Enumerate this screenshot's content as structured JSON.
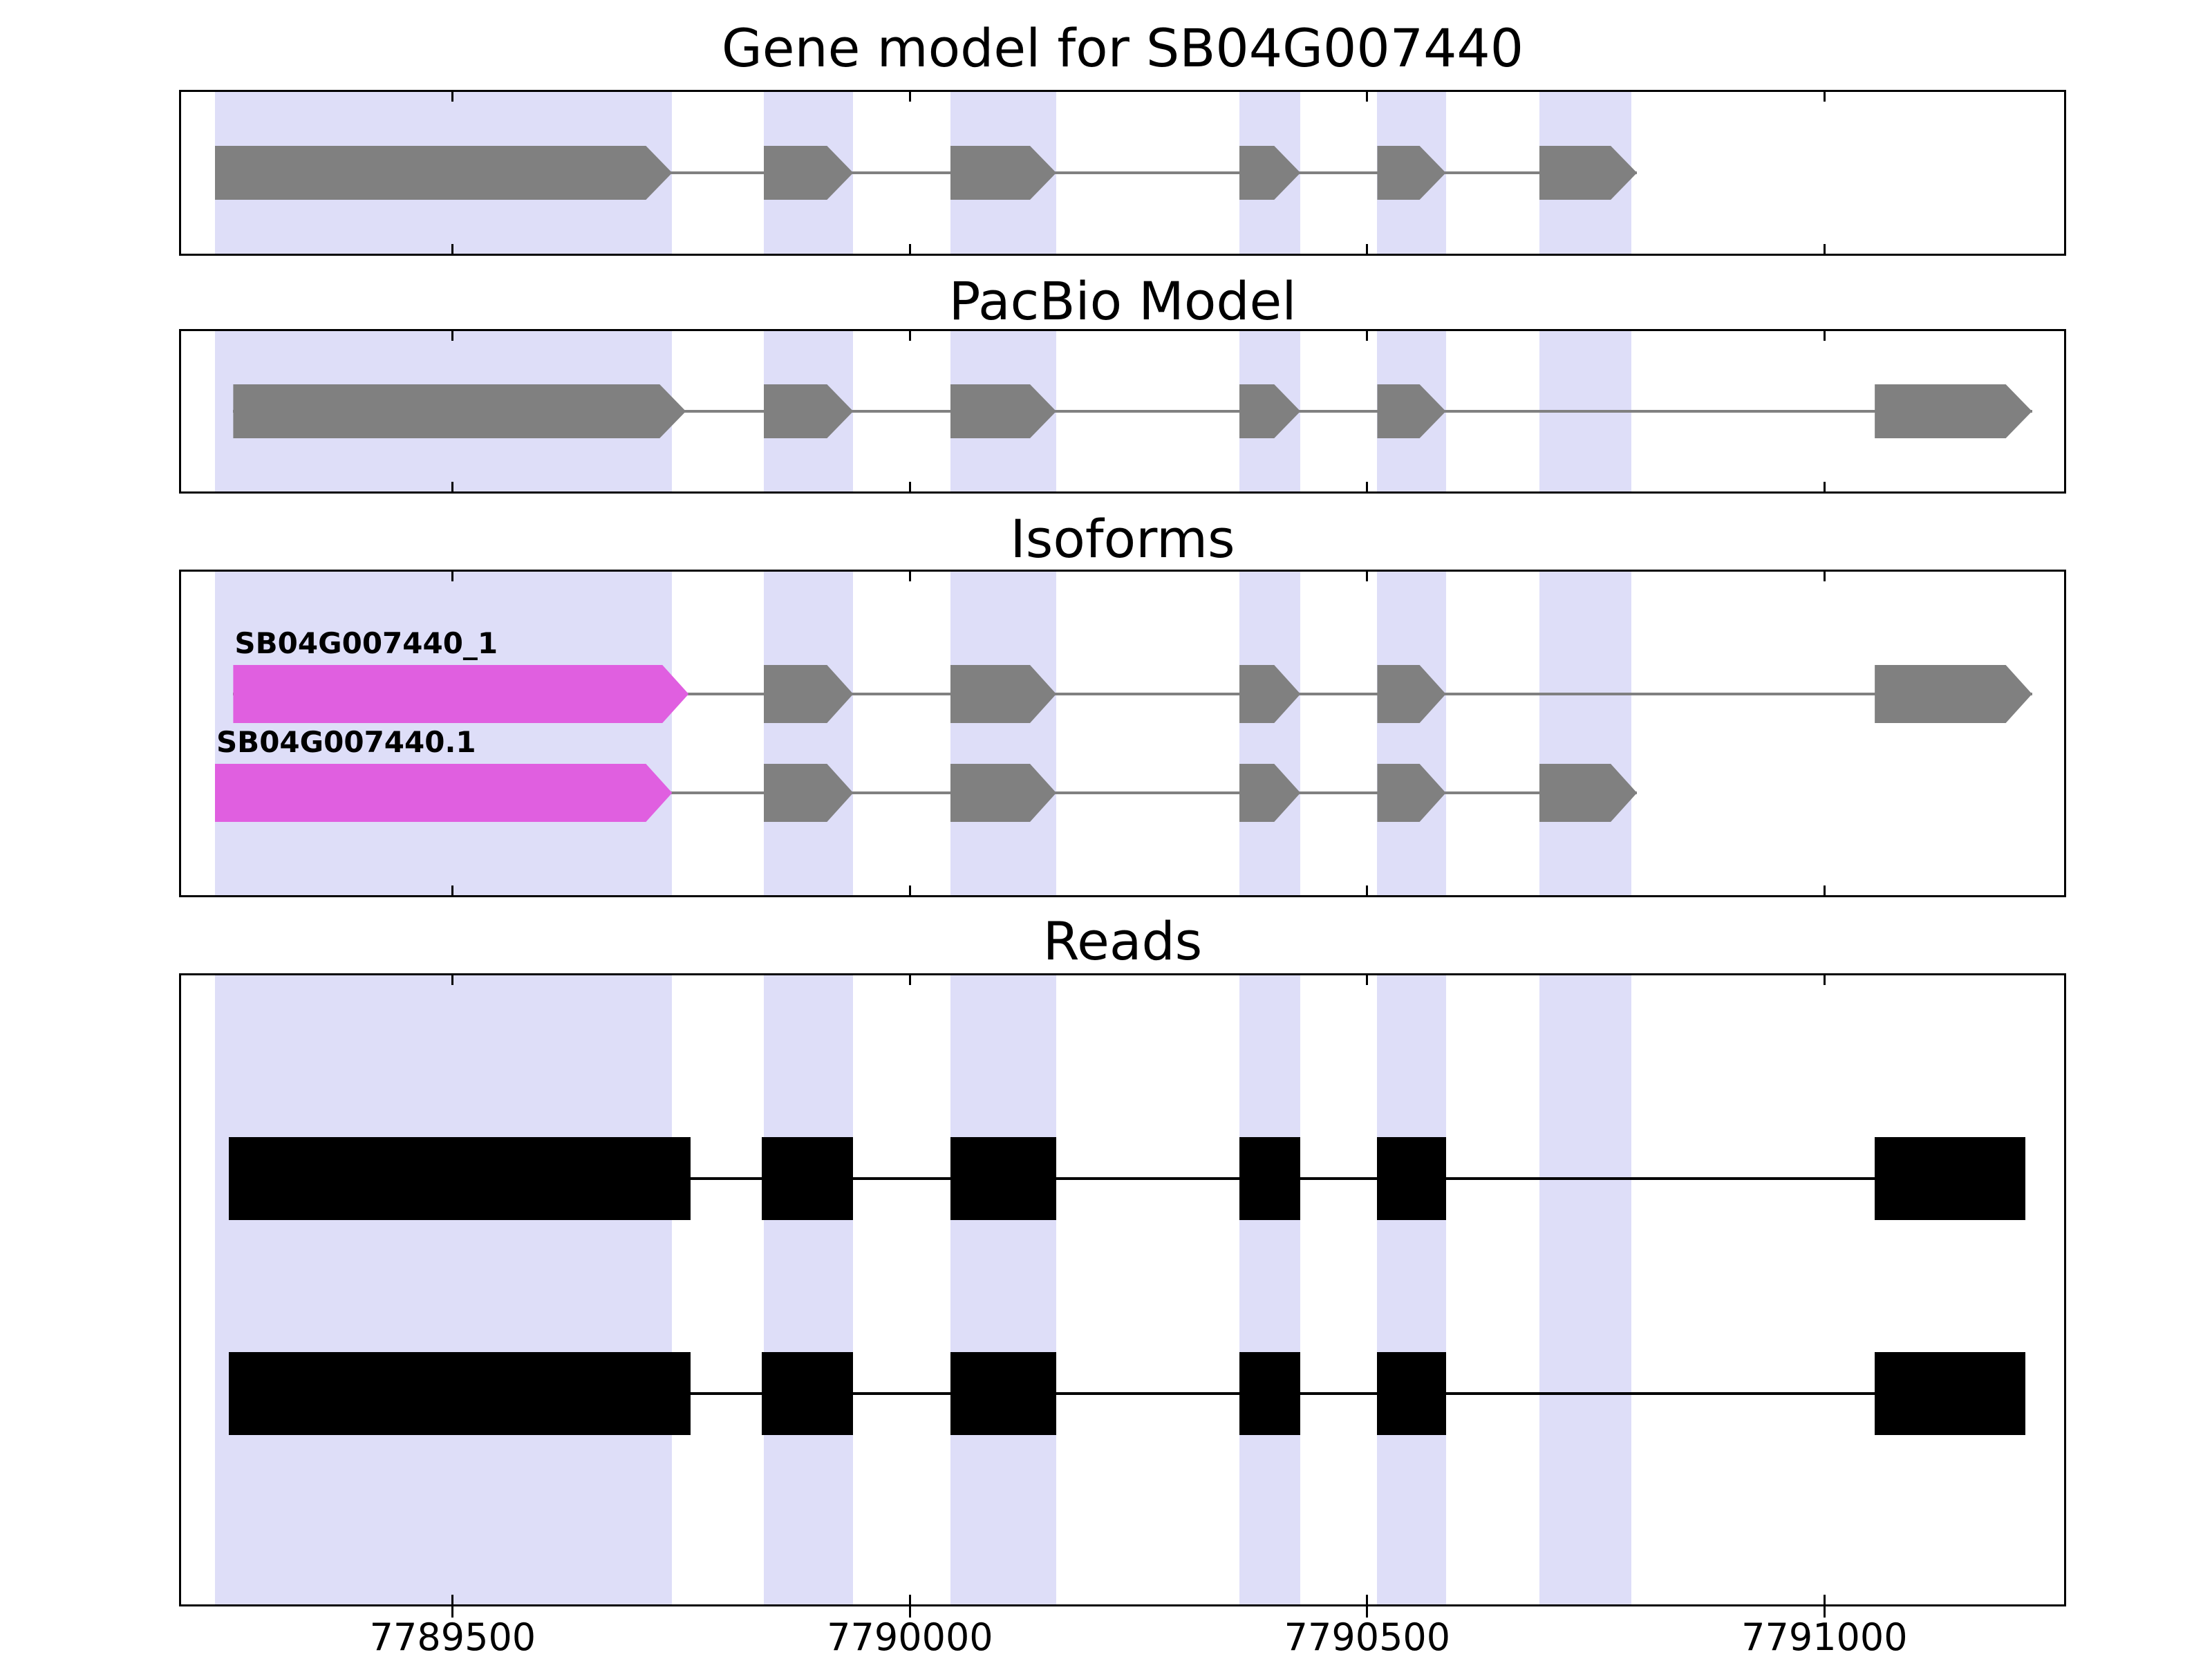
{
  "figure": {
    "background": "#ffffff"
  },
  "chart_data": {
    "type": "gene-model-tracks",
    "xlim": [
      7789203,
      7791262
    ],
    "xtick_values": [
      7789500,
      7790000,
      7790500,
      7791000
    ],
    "xticks": [
      "7789500",
      "7790000",
      "7790500",
      "7791000"
    ],
    "grid": false,
    "highlight_color": "#dedef8",
    "highlight_regions": [
      [
        7789240,
        7789740
      ],
      [
        7789840,
        7789938
      ],
      [
        7790044,
        7790160
      ],
      [
        7790360,
        7790427
      ],
      [
        7790511,
        7790586
      ],
      [
        7790688,
        7790789
      ]
    ],
    "colors": {
      "exon_gray": "#808080",
      "isoform_first_exon": "#e05fe0",
      "read_black": "#000000",
      "highlight_band": "#dedef8"
    },
    "panels": [
      {
        "title": "Gene model for SB04G007440",
        "tracks": [
          {
            "style": "arrow",
            "exon_color": "#808080",
            "first_exon_color": null,
            "line_color": "#808080",
            "label": "",
            "exons": [
              [
                7789240,
                7789740
              ],
              [
                7789840,
                7789938
              ],
              [
                7790044,
                7790160
              ],
              [
                7790360,
                7790427
              ],
              [
                7790511,
                7790586
              ],
              [
                7790688,
                7790795
              ]
            ]
          }
        ]
      },
      {
        "title": "PacBio Model",
        "tracks": [
          {
            "style": "arrow",
            "exon_color": "#808080",
            "first_exon_color": null,
            "line_color": "#808080",
            "label": "",
            "exons": [
              [
                7789260,
                7789755
              ],
              [
                7789840,
                7789938
              ],
              [
                7790044,
                7790160
              ],
              [
                7790360,
                7790427
              ],
              [
                7790511,
                7790586
              ],
              [
                7791055,
                7791227
              ]
            ]
          }
        ]
      },
      {
        "title": "Isoforms",
        "tracks": [
          {
            "style": "arrow",
            "exon_color": "#808080",
            "first_exon_color": "#e05fe0",
            "line_color": "#808080",
            "label": "SB04G007440_1",
            "exons": [
              [
                7789260,
                7789758
              ],
              [
                7789840,
                7789938
              ],
              [
                7790044,
                7790160
              ],
              [
                7790360,
                7790427
              ],
              [
                7790511,
                7790586
              ],
              [
                7791055,
                7791227
              ]
            ]
          },
          {
            "style": "arrow",
            "exon_color": "#808080",
            "first_exon_color": "#e05fe0",
            "line_color": "#808080",
            "label": "SB04G007440.1",
            "exons": [
              [
                7789240,
                7789740
              ],
              [
                7789840,
                7789938
              ],
              [
                7790044,
                7790160
              ],
              [
                7790360,
                7790427
              ],
              [
                7790511,
                7790586
              ],
              [
                7790688,
                7790795
              ]
            ]
          }
        ]
      },
      {
        "title": "Reads",
        "tracks": [
          {
            "style": "rect",
            "exon_color": "#000000",
            "first_exon_color": null,
            "line_color": "#000000",
            "label": "",
            "exons": [
              [
                7789255,
                7789760
              ],
              [
                7789838,
                7789938
              ],
              [
                7790044,
                7790160
              ],
              [
                7790360,
                7790427
              ],
              [
                7790511,
                7790586
              ],
              [
                7791055,
                7791220
              ]
            ]
          },
          {
            "style": "rect",
            "exon_color": "#000000",
            "first_exon_color": null,
            "line_color": "#000000",
            "label": "",
            "exons": [
              [
                7789255,
                7789760
              ],
              [
                7789838,
                7789938
              ],
              [
                7790044,
                7790160
              ],
              [
                7790360,
                7790427
              ],
              [
                7790511,
                7790586
              ],
              [
                7791055,
                7791220
              ]
            ]
          }
        ]
      }
    ]
  }
}
